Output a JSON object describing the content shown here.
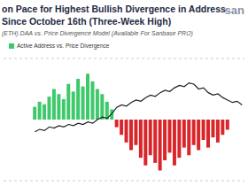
{
  "chart_data": {
    "type": "bar",
    "title": "on Pace for Highest Bullish Divergence in Address",
    "subtitle": "Since October 16th (Three-Week High)",
    "annotations": [
      "(ETH) DAA vs. Price Divergence Model (Available For Sanbase PRO)",
      "san"
    ],
    "categories": [
      null,
      null,
      null,
      null,
      null,
      null,
      null,
      null,
      null,
      null,
      null,
      null,
      null,
      null,
      null,
      null,
      null,
      null,
      null,
      null,
      null,
      null,
      null,
      null,
      null,
      null,
      null,
      null,
      null,
      null,
      null,
      null,
      null,
      null,
      null,
      null,
      null,
      null,
      null,
      null,
      null,
      null,
      null,
      null,
      null,
      null,
      null,
      null,
      null,
      null
    ],
    "series": [
      {
        "name": "Active Address vs. Price Divergence",
        "type": "bar",
        "colors": [
          "#3ec96b",
          "#3ec96b",
          "#3ec96b",
          "#3ec96b",
          "#3ec96b",
          "#3ec96b",
          "#3ec96b",
          "#3ec96b",
          "#3ec96b",
          "#3ec96b",
          "#3ec96b",
          "#3ec96b",
          "#3ec96b",
          "#3ec96b",
          "#3ec96b",
          "#3ec96b",
          "#3ec96b",
          "#3ec96b",
          "#3ec96b",
          "#3ec96b",
          "#3ec96b",
          "#3ec96b",
          "#3ec96b",
          "#d9262b",
          "#d9262b",
          "#d9262b",
          "#d9262b",
          "#d9262b",
          "#d9262b",
          "#d9262b",
          "#d9262b",
          "#d9262b",
          "#d9262b",
          "#d9262b",
          "#d9262b",
          "#d9262b",
          "#d9262b",
          "#d9262b",
          "#d9262b",
          "#d9262b",
          "#d9262b",
          "#d9262b",
          "#d9262b",
          "#d9262b",
          "#d9262b",
          "#d9262b",
          "#d9262b",
          "#d9262b",
          "#d9262b",
          "#d9262b"
        ],
        "values": [
          null,
          null,
          null,
          null,
          null,
          null,
          0.25,
          0.35,
          0.3,
          0.45,
          0.6,
          0.5,
          0.4,
          0.7,
          0.55,
          0.8,
          0.65,
          0.9,
          0.75,
          0.6,
          0.5,
          0.35,
          0.2,
          -0.15,
          -0.3,
          -0.45,
          -0.6,
          -0.5,
          -0.75,
          -0.9,
          -0.7,
          -0.85,
          -1.0,
          -0.8,
          -0.65,
          -0.9,
          -0.75,
          -0.55,
          -0.7,
          -0.5,
          -0.6,
          -0.4,
          -0.55,
          -0.35,
          -0.45,
          -0.3,
          -0.2,
          null,
          null,
          null
        ]
      },
      {
        "type": "line",
        "axis": "y2",
        "color": "#222222",
        "values": [
          null,
          null,
          null,
          null,
          null,
          null,
          40,
          42,
          41,
          44,
          43,
          45,
          44,
          46,
          45,
          47,
          46,
          48,
          47,
          50,
          52,
          51,
          55,
          60,
          62,
          61,
          64,
          66,
          65,
          68,
          70,
          69,
          72,
          74,
          73,
          76,
          78,
          77,
          80,
          79,
          75,
          76,
          72,
          70,
          71,
          68,
          66,
          64,
          65,
          62
        ]
      }
    ],
    "ylim": [
      -1.2,
      1.2
    ],
    "yticks": [
      -1.2,
      -0.8,
      -0.4,
      0,
      0.4,
      0.8,
      1.2
    ],
    "y2lim": [
      0,
      100
    ],
    "y2ticks": [
      0,
      50,
      100
    ],
    "grid": true,
    "tick_labels": false
  }
}
